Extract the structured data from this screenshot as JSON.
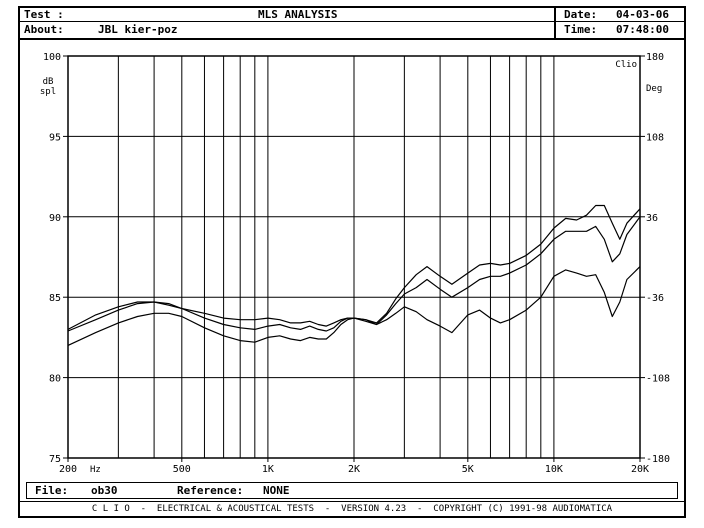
{
  "header": {
    "test_label": "Test :",
    "about_label": "About:",
    "about_value": "JBL kier-poz",
    "title": "MLS ANALYSIS",
    "date_label": "Date:",
    "date_value": "04-03-06",
    "time_label": "Time:",
    "time_value": "07:48:00"
  },
  "chart_data": {
    "type": "line",
    "xscale": "log",
    "xlim": [
      200,
      20000
    ],
    "ylim": [
      75,
      100
    ],
    "y2lim": [
      -180,
      180
    ],
    "ylabel": "dB spl",
    "ylabel_lines": [
      "dB",
      "spl"
    ],
    "y2label": "Deg",
    "brand": "Clio",
    "x_unit": "Hz",
    "x_major_ticks": [
      {
        "value": 200,
        "label": "200"
      },
      {
        "value": 500,
        "label": "500"
      },
      {
        "value": 1000,
        "label": "1K"
      },
      {
        "value": 2000,
        "label": "2K"
      },
      {
        "value": 5000,
        "label": "5K"
      },
      {
        "value": 10000,
        "label": "10K"
      },
      {
        "value": 20000,
        "label": "20K"
      }
    ],
    "x_gridlines": [
      300,
      400,
      500,
      600,
      700,
      800,
      900,
      1000,
      2000,
      3000,
      4000,
      5000,
      6000,
      7000,
      8000,
      9000,
      10000
    ],
    "y_ticks": [
      100,
      95,
      90,
      85,
      80,
      75
    ],
    "y2_ticks": [
      180,
      108,
      36,
      -36,
      -108,
      -180
    ],
    "grid": true,
    "series": [
      {
        "x": [
          200,
          250,
          300,
          350,
          400,
          450,
          500,
          600,
          700,
          800,
          900,
          1000,
          1100,
          1200,
          1300,
          1400,
          1500,
          1600,
          1700,
          1800,
          1900,
          2000,
          2200,
          2400,
          2600,
          2800,
          3000,
          3300,
          3600,
          4000,
          4400,
          5000,
          5500,
          6000,
          6500,
          7000,
          8000,
          9000,
          10000,
          11000,
          12000,
          13000,
          14000,
          15000,
          16000,
          17000,
          18000,
          20000
        ],
        "values": [
          83.0,
          83.9,
          84.4,
          84.7,
          84.7,
          84.5,
          84.3,
          84.0,
          83.7,
          83.6,
          83.6,
          83.7,
          83.6,
          83.4,
          83.4,
          83.5,
          83.3,
          83.2,
          83.4,
          83.6,
          83.7,
          83.7,
          83.6,
          83.4,
          84.0,
          84.9,
          85.6,
          86.4,
          86.9,
          86.3,
          85.8,
          86.5,
          87.0,
          87.1,
          87.0,
          87.1,
          87.6,
          88.3,
          89.3,
          89.9,
          89.8,
          90.1,
          90.7,
          90.7,
          89.6,
          88.6,
          89.6,
          90.5
        ]
      },
      {
        "x": [
          200,
          250,
          300,
          350,
          400,
          450,
          500,
          600,
          700,
          800,
          900,
          1000,
          1100,
          1200,
          1300,
          1400,
          1500,
          1600,
          1700,
          1800,
          1900,
          2000,
          2200,
          2400,
          2600,
          2800,
          3000,
          3300,
          3600,
          4000,
          4400,
          5000,
          5500,
          6000,
          6500,
          7000,
          8000,
          9000,
          10000,
          11000,
          12000,
          13000,
          14000,
          15000,
          16000,
          17000,
          18000,
          20000
        ],
        "values": [
          82.9,
          83.6,
          84.2,
          84.6,
          84.7,
          84.6,
          84.3,
          83.7,
          83.3,
          83.1,
          83.0,
          83.2,
          83.3,
          83.1,
          83.0,
          83.2,
          83.0,
          82.9,
          83.1,
          83.5,
          83.7,
          83.7,
          83.5,
          83.3,
          83.9,
          84.6,
          85.2,
          85.6,
          86.1,
          85.5,
          85.0,
          85.6,
          86.1,
          86.3,
          86.3,
          86.5,
          87.0,
          87.7,
          88.6,
          89.1,
          89.1,
          89.1,
          89.4,
          88.6,
          87.2,
          87.7,
          88.9,
          90.0
        ]
      },
      {
        "x": [
          200,
          250,
          300,
          350,
          400,
          450,
          500,
          600,
          700,
          800,
          900,
          1000,
          1100,
          1200,
          1300,
          1400,
          1500,
          1600,
          1700,
          1800,
          1900,
          2000,
          2200,
          2400,
          2600,
          2800,
          3000,
          3300,
          3600,
          4000,
          4400,
          5000,
          5500,
          6000,
          6500,
          7000,
          8000,
          9000,
          10000,
          11000,
          12000,
          13000,
          14000,
          15000,
          16000,
          17000,
          18000,
          20000
        ],
        "values": [
          82.0,
          82.8,
          83.4,
          83.8,
          84.0,
          84.0,
          83.8,
          83.1,
          82.6,
          82.3,
          82.2,
          82.5,
          82.6,
          82.4,
          82.3,
          82.5,
          82.4,
          82.4,
          82.8,
          83.3,
          83.6,
          83.7,
          83.6,
          83.3,
          83.6,
          84.0,
          84.4,
          84.1,
          83.6,
          83.2,
          82.8,
          83.9,
          84.2,
          83.7,
          83.4,
          83.6,
          84.2,
          85.0,
          86.3,
          86.7,
          86.5,
          86.3,
          86.4,
          85.3,
          83.8,
          84.7,
          86.1,
          86.9
        ]
      }
    ]
  },
  "file_bar": {
    "file_label": "File:",
    "file_value": "ob30",
    "reference_label": "Reference:",
    "reference_value": "NONE"
  },
  "footer": {
    "text": "C L I O  -  ELECTRICAL & ACOUSTICAL TESTS  -  VERSION 4.23  -  COPYRIGHT (C) 1991-98 AUDIOMATICA"
  },
  "colors": {
    "ink": "#000000",
    "paper": "#ffffff"
  }
}
